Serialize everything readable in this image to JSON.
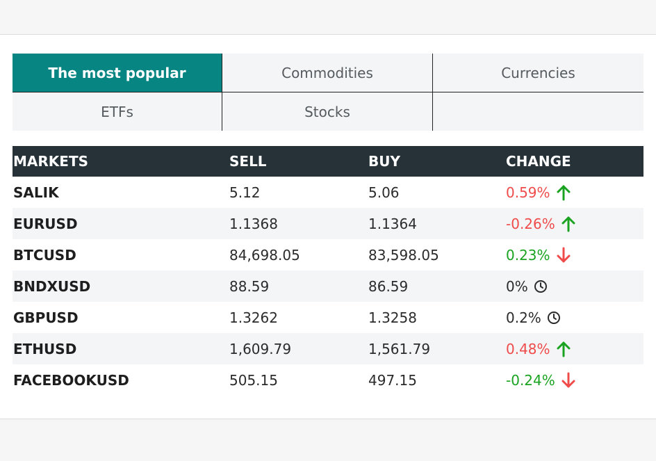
{
  "tabs": [
    {
      "label": "The most popular",
      "active": true
    },
    {
      "label": "Commodities",
      "active": false
    },
    {
      "label": "Currencies",
      "active": false
    },
    {
      "label": "ETFs",
      "active": false
    },
    {
      "label": "Stocks",
      "active": false
    }
  ],
  "table": {
    "headers": {
      "market": "MARKETS",
      "sell": "SELL",
      "buy": "BUY",
      "change": "CHANGE"
    },
    "rows": [
      {
        "market": "SALIK",
        "sell": "5.12",
        "buy": "5.06",
        "change": "0.59%",
        "change_color": "#ef4b4b",
        "icon": "arrow-up-icon",
        "icon_color": "#1aa320"
      },
      {
        "market": "EURUSD",
        "sell": "1.1368",
        "buy": "1.1364",
        "change": "-0.26%",
        "change_color": "#ef4b4b",
        "icon": "arrow-up-icon",
        "icon_color": "#1aa320"
      },
      {
        "market": "BTCUSD",
        "sell": "84,698.05",
        "buy": "83,598.05",
        "change": "0.23%",
        "change_color": "#1aa320",
        "icon": "arrow-down-icon",
        "icon_color": "#ef4b4b"
      },
      {
        "market": "BNDXUSD",
        "sell": "88.59",
        "buy": "86.59",
        "change": "0%",
        "change_color": "#2b2b2b",
        "icon": "clock-icon",
        "icon_color": "#2b2b2b"
      },
      {
        "market": "GBPUSD",
        "sell": "1.3262",
        "buy": "1.3258",
        "change": "0.2%",
        "change_color": "#2b2b2b",
        "icon": "clock-icon",
        "icon_color": "#2b2b2b"
      },
      {
        "market": "ETHUSD",
        "sell": "1,609.79",
        "buy": "1,561.79",
        "change": "0.48%",
        "change_color": "#ef4b4b",
        "icon": "arrow-up-icon",
        "icon_color": "#1aa320"
      },
      {
        "market": "FACEBOOKUSD",
        "sell": "505.15",
        "buy": "497.15",
        "change": "-0.24%",
        "change_color": "#1aa320",
        "icon": "arrow-down-icon",
        "icon_color": "#ef4b4b"
      }
    ]
  },
  "colors": {
    "accent": "#078583",
    "header_bg": "#263238",
    "row_shade": "#f4f5f7"
  }
}
